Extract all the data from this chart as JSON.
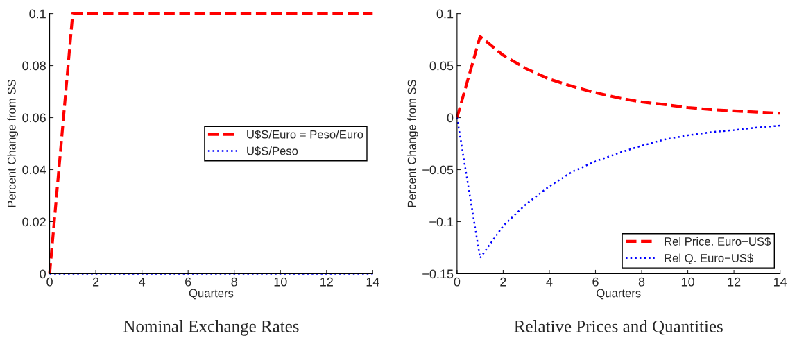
{
  "chart_data": [
    {
      "type": "line",
      "title": "Nominal Exchange Rates",
      "xlabel": "Quarters",
      "ylabel": "Percent Change from SS",
      "x": [
        0,
        1,
        2,
        3,
        4,
        5,
        6,
        7,
        8,
        9,
        10,
        11,
        12,
        13,
        14
      ],
      "series": [
        {
          "name": "U$S/Euro = Peso/Euro",
          "color": "#ff0000",
          "line_style": "dashed",
          "values": [
            0,
            0.1,
            0.1,
            0.1,
            0.1,
            0.1,
            0.1,
            0.1,
            0.1,
            0.1,
            0.1,
            0.1,
            0.1,
            0.1,
            0.1
          ]
        },
        {
          "name": "U$S/Peso",
          "color": "#0000ff",
          "line_style": "dotted",
          "values": [
            0,
            0,
            0,
            0,
            0,
            0,
            0,
            0,
            0,
            0,
            0,
            0,
            0,
            0,
            0
          ]
        }
      ],
      "xlim": [
        0,
        14
      ],
      "xticks": [
        0,
        2,
        4,
        6,
        8,
        10,
        12,
        14
      ],
      "ylim": [
        0,
        0.1
      ],
      "yticks": [
        0,
        0.02,
        0.04,
        0.06,
        0.08,
        0.1
      ],
      "legend": "right",
      "grid": false
    },
    {
      "type": "line",
      "title": "Relative Prices and Quantities",
      "xlabel": "Quarters",
      "ylabel": "Percent Change from SS",
      "x": [
        0,
        1,
        2,
        3,
        4,
        5,
        6,
        7,
        8,
        9,
        10,
        11,
        12,
        13,
        14
      ],
      "series": [
        {
          "name": "Rel Price. Euro−US$",
          "color": "#ff0000",
          "line_style": "dashed",
          "values": [
            0,
            0.078,
            0.06,
            0.047,
            0.037,
            0.03,
            0.024,
            0.019,
            0.015,
            0.0126,
            0.0097,
            0.0077,
            0.0064,
            0.0053,
            0.0042
          ]
        },
        {
          "name": "Rel Q. Euro−US$",
          "color": "#0000ff",
          "line_style": "dotted",
          "values": [
            0,
            -0.135,
            -0.104,
            -0.083,
            -0.066,
            -0.052,
            -0.042,
            -0.034,
            -0.027,
            -0.021,
            -0.017,
            -0.014,
            -0.012,
            -0.0095,
            -0.0077
          ]
        }
      ],
      "xlim": [
        0,
        14
      ],
      "xticks": [
        0,
        2,
        4,
        6,
        8,
        10,
        12,
        14
      ],
      "ylim": [
        -0.15,
        0.1
      ],
      "yticks": [
        {
          "value": -0.15,
          "label": "−0.15"
        },
        {
          "value": -0.1,
          "label": "−0.1"
        },
        {
          "value": -0.05,
          "label": "−0.05"
        },
        0,
        0.05,
        0.1
      ],
      "legend": "bottom right",
      "grid": false
    }
  ]
}
